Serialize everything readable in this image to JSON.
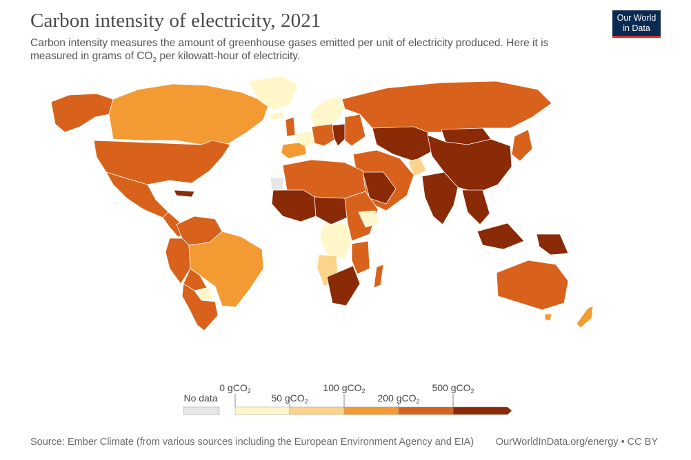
{
  "header": {
    "title": "Carbon intensity of electricity, 2021",
    "subtitle_line1": "Carbon intensity measures the amount of greenhouse gases emitted per unit of electricity produced. Here it is",
    "subtitle_line2_pre": "measured in grams of CO",
    "subtitle_line2_sub": "2",
    "subtitle_line2_post": " per kilowatt-hour of electricity."
  },
  "logo": {
    "line1": "Our World",
    "line2": "in Data",
    "bg_color": "#0b2a51",
    "accent_color": "#e42b28"
  },
  "colors": {
    "no_data": "#e6e6e6",
    "bin_0_50": "#fff7c9",
    "bin_50_100": "#fbd38b",
    "bin_100_200": "#f39a32",
    "bin_200_500": "#d8621b",
    "bin_500_plus": "#8a2a06",
    "ocean": "#ffffff",
    "border": "#ffffff"
  },
  "legend": {
    "no_data_label": "No data",
    "ticks_above": [
      {
        "label": "0 gCO",
        "sub": "2"
      },
      {
        "label": "100 gCO",
        "sub": "2"
      },
      {
        "label": "500 gCO",
        "sub": "2"
      }
    ],
    "ticks_below": [
      {
        "label": "50 gCO",
        "sub": "2"
      },
      {
        "label": "200 gCO",
        "sub": "2"
      }
    ],
    "bins": [
      {
        "color_key": "bin_0_50"
      },
      {
        "color_key": "bin_50_100"
      },
      {
        "color_key": "bin_100_200"
      },
      {
        "color_key": "bin_200_500"
      },
      {
        "color_key": "bin_500_plus"
      }
    ]
  },
  "footer": {
    "source": "Source: Ember Climate (from various sources including the European Environment Agency and EIA)",
    "credit": "OurWorldInData.org/energy • CC BY"
  }
}
